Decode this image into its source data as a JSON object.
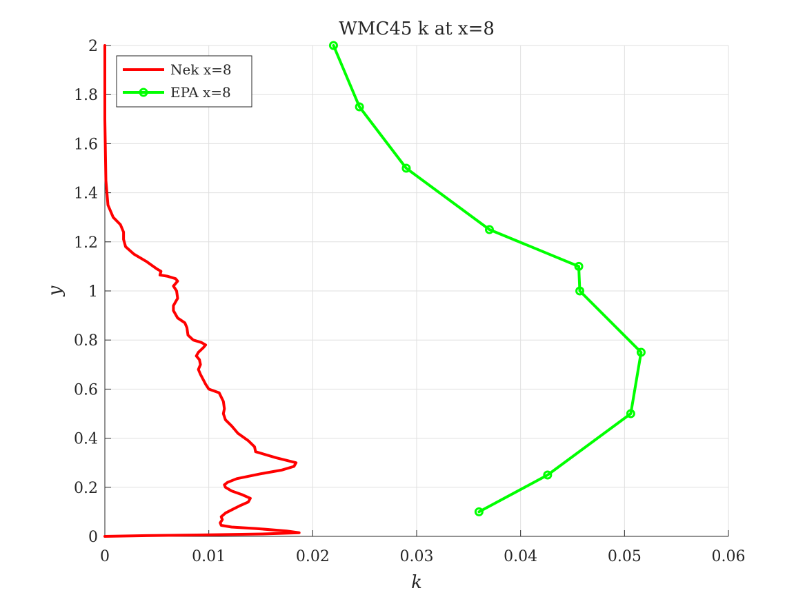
{
  "chart_data": {
    "type": "line",
    "title": "WMC45 k at x=8",
    "xlabel": "k",
    "ylabel": "y",
    "xlim": [
      0,
      0.06
    ],
    "ylim": [
      0,
      2
    ],
    "xticks": [
      0,
      0.01,
      0.02,
      0.03,
      0.04,
      0.05,
      0.06
    ],
    "xtick_labels": [
      "0",
      "0.01",
      "0.02",
      "0.03",
      "0.04",
      "0.05",
      "0.06"
    ],
    "yticks": [
      0,
      0.2,
      0.4,
      0.6,
      0.8,
      1,
      1.2,
      1.4,
      1.6,
      1.8,
      2
    ],
    "ytick_labels": [
      "0",
      "0.2",
      "0.4",
      "0.6",
      "0.8",
      "1",
      "1.2",
      "1.4",
      "1.6",
      "1.8",
      "2"
    ],
    "grid": true,
    "legend_position": "top-left",
    "series": [
      {
        "name": "Nek x=8",
        "color": "#ff0000",
        "marker": "none",
        "x": [
          0,
          0.004,
          0.0095,
          0.0155,
          0.0187,
          0.0175,
          0.0145,
          0.0122,
          0.0112,
          0.0111,
          0.0113,
          0.0112,
          0.0116,
          0.0123,
          0.013,
          0.0138,
          0.014,
          0.0132,
          0.0122,
          0.0116,
          0.0115,
          0.0118,
          0.0127,
          0.015,
          0.017,
          0.0182,
          0.0184,
          0.0165,
          0.0145,
          0.0144,
          0.0138,
          0.0128,
          0.0122,
          0.0116,
          0.0114,
          0.0115,
          0.0114,
          0.011,
          0.01,
          0.0097,
          0.0092,
          0.009,
          0.0092,
          0.0091,
          0.0088,
          0.009,
          0.0095,
          0.0097,
          0.0093,
          0.0085,
          0.008,
          0.0079,
          0.0077,
          0.007,
          0.0066,
          0.0066,
          0.007,
          0.0069,
          0.0066,
          0.007,
          0.0068,
          0.006,
          0.0053,
          0.0054,
          0.005,
          0.004,
          0.0028,
          0.002,
          0.0018,
          0.0018,
          0.0015,
          0.0008,
          0.0003,
          0.0001,
          0,
          0
        ],
        "y": [
          0,
          0.003,
          0.006,
          0.01,
          0.015,
          0.022,
          0.032,
          0.038,
          0.045,
          0.055,
          0.068,
          0.08,
          0.095,
          0.11,
          0.125,
          0.14,
          0.155,
          0.17,
          0.185,
          0.2,
          0.21,
          0.22,
          0.235,
          0.255,
          0.27,
          0.285,
          0.3,
          0.32,
          0.345,
          0.365,
          0.39,
          0.42,
          0.45,
          0.475,
          0.5,
          0.52,
          0.55,
          0.585,
          0.6,
          0.62,
          0.66,
          0.68,
          0.7,
          0.72,
          0.735,
          0.75,
          0.77,
          0.78,
          0.79,
          0.8,
          0.82,
          0.85,
          0.87,
          0.89,
          0.92,
          0.94,
          0.97,
          1.0,
          1.02,
          1.04,
          1.05,
          1.06,
          1.065,
          1.08,
          1.09,
          1.12,
          1.15,
          1.18,
          1.21,
          1.24,
          1.27,
          1.3,
          1.35,
          1.45,
          1.7,
          2.0
        ]
      },
      {
        "name": "EPA x=8",
        "color": "#00ff00",
        "marker": "circle",
        "x": [
          0.036,
          0.0426,
          0.0506,
          0.0516,
          0.0457,
          0.0456,
          0.037,
          0.029,
          0.0245,
          0.022
        ],
        "y": [
          0.1,
          0.25,
          0.5,
          0.75,
          1.0,
          1.1,
          1.25,
          1.5,
          1.75,
          2.0
        ]
      }
    ]
  }
}
